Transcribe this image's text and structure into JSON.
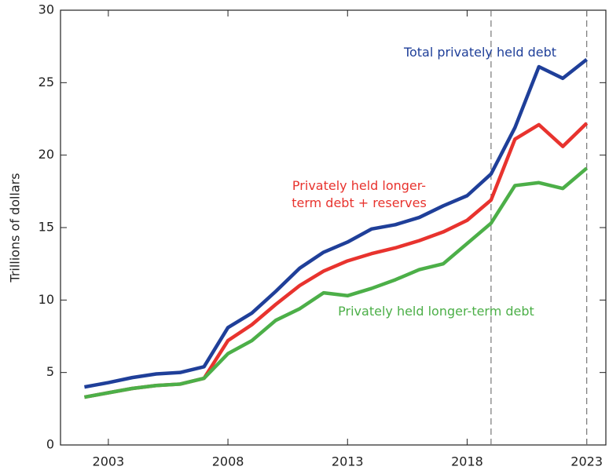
{
  "chart_data": {
    "type": "line",
    "ylabel": "Trillions of dollars",
    "x": [
      2002,
      2003,
      2004,
      2005,
      2006,
      2007,
      2008,
      2009,
      2010,
      2011,
      2012,
      2013,
      2014,
      2015,
      2016,
      2017,
      2018,
      2019,
      2020,
      2021,
      2022,
      2023
    ],
    "series": [
      {
        "name": "Total privately held debt",
        "color": "#1f3f99",
        "values": [
          4.0,
          4.3,
          4.65,
          4.9,
          5.0,
          5.4,
          8.1,
          9.1,
          10.6,
          12.2,
          13.3,
          14.0,
          14.9,
          15.2,
          15.7,
          16.5,
          17.2,
          18.7,
          21.9,
          26.1,
          25.3,
          26.6
        ]
      },
      {
        "name": "Privately held longer-term debt + reserves",
        "color": "#e8332e",
        "values": [
          3.3,
          3.6,
          3.9,
          4.1,
          4.2,
          4.6,
          7.2,
          8.3,
          9.7,
          11.0,
          12.0,
          12.7,
          13.2,
          13.6,
          14.1,
          14.7,
          15.5,
          16.9,
          21.1,
          22.1,
          20.6,
          22.2
        ]
      },
      {
        "name": "Privately held longer-term debt",
        "color": "#4caf48",
        "values": [
          3.3,
          3.6,
          3.9,
          4.1,
          4.2,
          4.6,
          6.3,
          7.2,
          8.6,
          9.4,
          10.5,
          10.3,
          10.8,
          11.4,
          12.1,
          12.5,
          13.9,
          15.3,
          17.9,
          18.1,
          17.7,
          19.1
        ]
      }
    ],
    "xlim": [
      2001,
      2023.8
    ],
    "xticks": [
      2003,
      2008,
      2013,
      2018,
      2023
    ],
    "ylim": [
      0,
      30
    ],
    "yticks": [
      0,
      5,
      10,
      15,
      20,
      25,
      30
    ],
    "vlines": [
      2019,
      2023
    ],
    "grid": false
  }
}
